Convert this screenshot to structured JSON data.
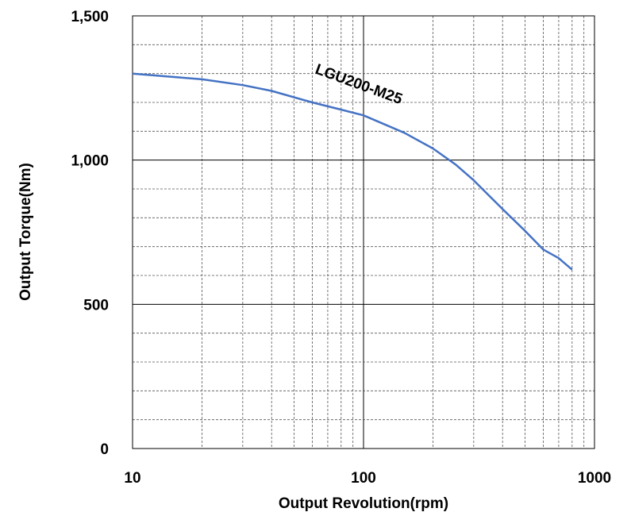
{
  "chart_data": {
    "type": "line",
    "xscale": "log",
    "xlim": [
      10,
      1000
    ],
    "ylim": [
      0,
      1500
    ],
    "xlabel": "Output Revolution(rpm)",
    "ylabel": "Output Torque(Nm)",
    "x_ticks": [
      "10",
      "100",
      "1000"
    ],
    "y_ticks": [
      "0",
      "500",
      "1,000",
      "1,500"
    ],
    "grid": true,
    "series": [
      {
        "name": "LGU200-M25",
        "color": "#4472C4",
        "x": [
          10,
          20,
          30,
          40,
          60,
          80,
          100,
          150,
          200,
          250,
          300,
          400,
          500,
          600,
          700,
          800
        ],
        "y": [
          1300,
          1280,
          1260,
          1240,
          1200,
          1175,
          1155,
          1095,
          1040,
          985,
          930,
          830,
          755,
          690,
          660,
          620
        ]
      }
    ]
  }
}
